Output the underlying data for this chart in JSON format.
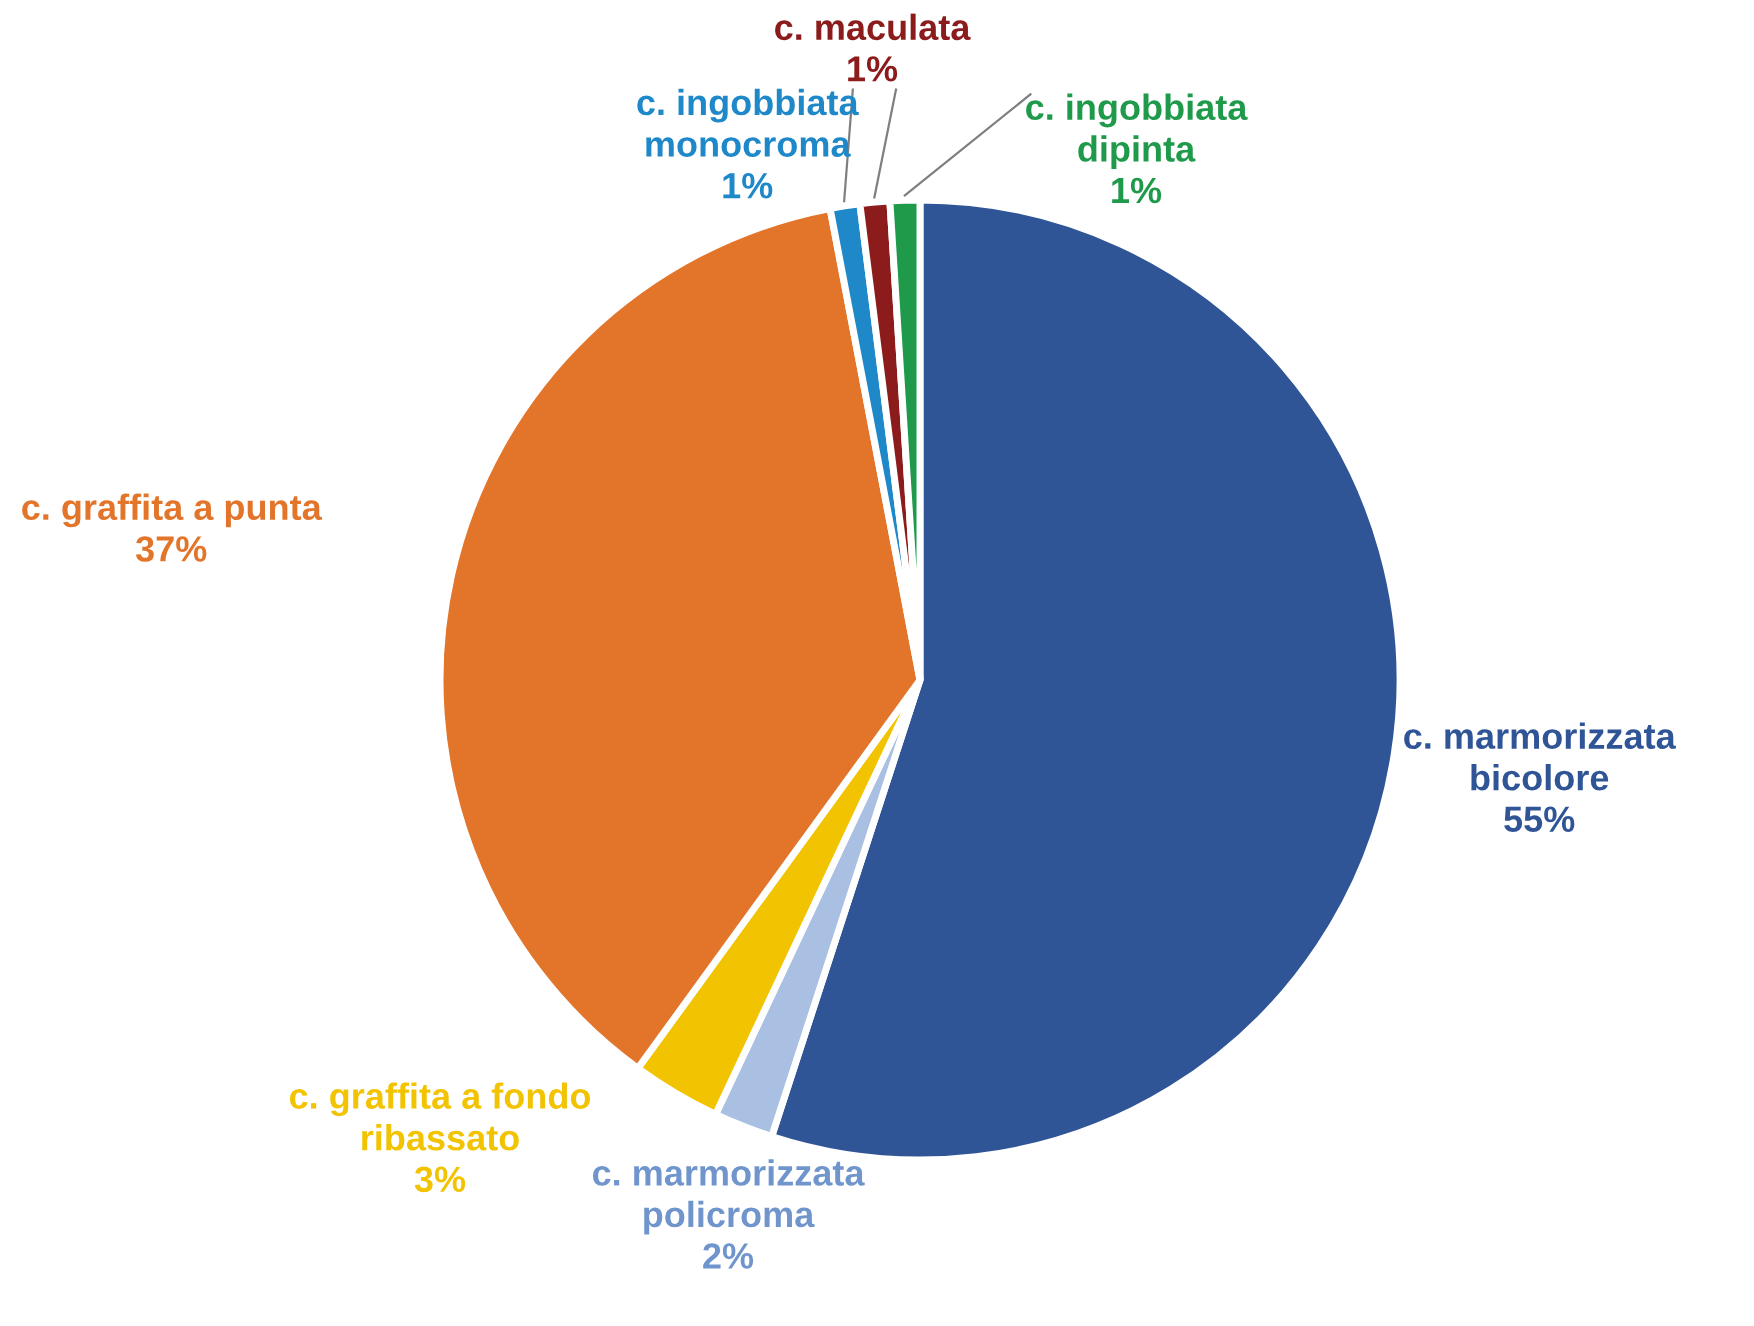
{
  "chart_data": {
    "type": "pie",
    "categories": [
      "c. marmorizzata bicolore",
      "c. marmorizzata policroma",
      "c. graffita a fondo ribassato",
      "c. graffita a punta",
      "c. ingobbiata monocroma",
      "c. maculata",
      "c. ingobbiata dipinta"
    ],
    "values": [
      55,
      2,
      3,
      37,
      1,
      1,
      1
    ],
    "colors": [
      "#2f5597",
      "#a9c0e3",
      "#f2c300",
      "#e3752a",
      "#1f88c9",
      "#8c1c1c",
      "#1f9a4b"
    ],
    "value_labels": [
      "55%",
      "2%",
      "3%",
      "37%",
      "1%",
      "1%",
      "1%"
    ]
  }
}
